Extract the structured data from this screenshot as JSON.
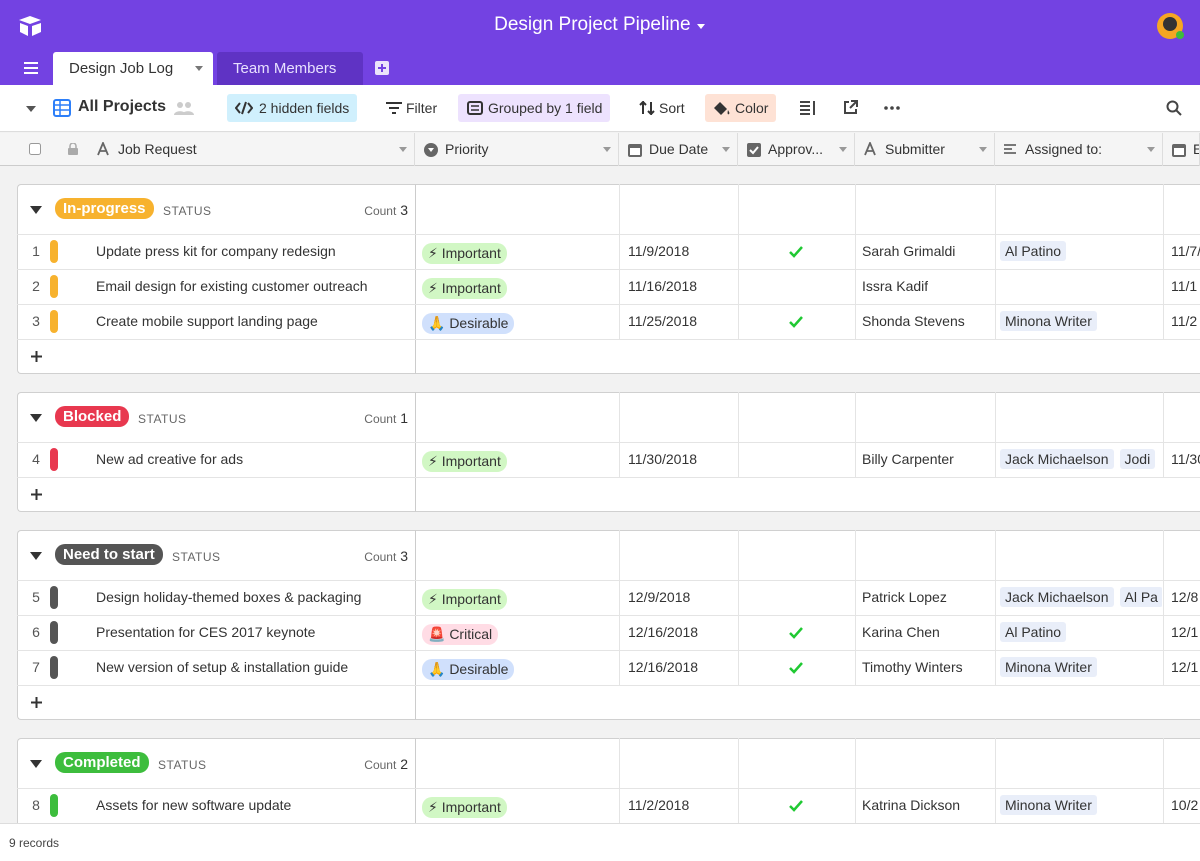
{
  "header": {
    "title": "Design Project Pipeline"
  },
  "tabs": [
    "Design Job Log",
    "Team Members"
  ],
  "toolbar": {
    "view": "All Projects",
    "hidden_fields": "2 hidden fields",
    "filter": "Filter",
    "grouped": "Grouped by 1 field",
    "sort": "Sort",
    "color": "Color"
  },
  "columns": [
    "Job Request",
    "Priority",
    "Due Date",
    "Approv...",
    "Submitter",
    "Assigned to:",
    "E"
  ],
  "groups": [
    {
      "label": "In-progress",
      "color": "#f7b22e",
      "field": "STATUS",
      "count_label": "Count",
      "count": 3,
      "rows": [
        {
          "number": 1,
          "request": "Update press kit for company redesign",
          "priority": "⚡ Important",
          "due": "11/9/2018",
          "approved": true,
          "submitter": "Sarah Grimaldi",
          "assigned": [
            "Al Patino"
          ],
          "extra": "11/7/"
        },
        {
          "number": 2,
          "request": "Email design for existing customer outreach",
          "priority": "⚡ Important",
          "due": "11/16/2018",
          "approved": false,
          "submitter": "Issra Kadif",
          "assigned": [],
          "extra": "11/1"
        },
        {
          "number": 3,
          "request": "Create mobile support landing page",
          "priority": "🙏 Desirable",
          "due": "11/25/2018",
          "approved": true,
          "submitter": "Shonda Stevens",
          "assigned": [
            "Minona Writer"
          ],
          "extra": "11/2"
        }
      ]
    },
    {
      "label": "Blocked",
      "color": "#e8384f",
      "field": "STATUS",
      "count_label": "Count",
      "count": 1,
      "rows": [
        {
          "number": 4,
          "request": "New ad creative for ads",
          "priority": "⚡ Important",
          "due": "11/30/2018",
          "approved": false,
          "submitter": "Billy Carpenter",
          "assigned": [
            "Jack Michaelson",
            "Jodi"
          ],
          "extra": "11/30"
        }
      ]
    },
    {
      "label": "Need to start",
      "color": "#555555",
      "field": "STATUS",
      "count_label": "Count",
      "count": 3,
      "rows": [
        {
          "number": 5,
          "request": "Design holiday-themed boxes & packaging",
          "priority": "⚡ Important",
          "due": "12/9/2018",
          "approved": false,
          "submitter": "Patrick Lopez",
          "assigned": [
            "Jack Michaelson",
            "Al Pa"
          ],
          "extra": "12/8"
        },
        {
          "number": 6,
          "request": "Presentation for CES 2017 keynote",
          "priority": "🚨 Critical",
          "due": "12/16/2018",
          "approved": true,
          "submitter": "Karina Chen",
          "assigned": [
            "Al Patino"
          ],
          "extra": "12/1"
        },
        {
          "number": 7,
          "request": "New version of setup & installation guide",
          "priority": "🙏 Desirable",
          "due": "12/16/2018",
          "approved": true,
          "submitter": "Timothy Winters",
          "assigned": [
            "Minona Writer"
          ],
          "extra": "12/1"
        }
      ]
    },
    {
      "label": "Completed",
      "color": "#3dbd3d",
      "field": "STATUS",
      "count_label": "Count",
      "count": 2,
      "rows": [
        {
          "number": 8,
          "request": "Assets for new software update",
          "priority": "⚡ Important",
          "due": "11/2/2018",
          "approved": true,
          "submitter": "Katrina Dickson",
          "assigned": [
            "Minona Writer"
          ],
          "extra": "10/2"
        }
      ]
    }
  ],
  "footer": {
    "records": "9 records"
  }
}
